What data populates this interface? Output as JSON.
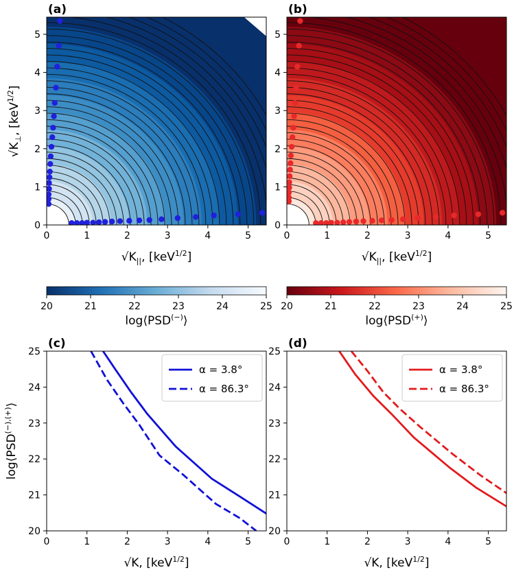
{
  "panels": {
    "a": {
      "label": "(a)",
      "xlabel_pre": "√K",
      "xlabel_sub": "||",
      "xlabel_post": ", [keV",
      "xlabel_sup": "1/2",
      "ylabel_pre": "√K",
      "ylabel_sub": "⊥",
      "ylabel_post": ", [keV",
      "ylabel_sup": "1/2"
    },
    "b": {
      "label": "(b)",
      "xlabel_pre": "√K",
      "xlabel_sub": "||",
      "xlabel_post": ", [keV",
      "xlabel_sup": "1/2"
    },
    "c": {
      "label": "(c)",
      "xlabel": "√K, [keV",
      "xlabel_sup": "1/2",
      "ylabel": "log⟨PSD",
      "ylabel_sup": "(−),(+)"
    },
    "d": {
      "label": "(d)",
      "xlabel": "√K, [keV",
      "xlabel_sup": "1/2"
    }
  },
  "colorbars": {
    "minus": {
      "label": "log⟨PSD",
      "sup": "(−)",
      "ticks": [
        "20",
        "21",
        "22",
        "23",
        "24",
        "25"
      ],
      "color_low": "#08306b",
      "color_high": "#f7fbff"
    },
    "plus": {
      "label": "log⟨PSD",
      "sup": "(+)",
      "ticks": [
        "20",
        "21",
        "22",
        "23",
        "24",
        "25"
      ],
      "color_low": "#67000d",
      "color_high": "#fff5f0"
    }
  },
  "colors": {
    "blue_line": "#1010d8",
    "red_line": "#e31a1c",
    "blue_dot": "#2020dd",
    "red_dot": "#e8282a"
  },
  "chart_data": [
    {
      "type": "heatmap",
      "panel": "a",
      "title": "(a)",
      "xlabel": "√K||, [keV^1/2]",
      "ylabel": "√K⊥, [keV^1/2]",
      "xlim": [
        0,
        5.45
      ],
      "ylim": [
        0,
        5.45
      ],
      "xticks": [
        "0",
        "1",
        "2",
        "3",
        "4",
        "5"
      ],
      "yticks": [
        "0",
        "1",
        "2",
        "3",
        "4",
        "5"
      ],
      "colormap": "Blues_r",
      "clim": [
        20,
        25
      ],
      "description": "log PSD(-) decreasing with radius sqrt(K)",
      "markers_x_axis": [
        [
          0.62,
          0.05
        ],
        [
          0.75,
          0.05
        ],
        [
          0.88,
          0.05
        ],
        [
          1.0,
          0.06
        ],
        [
          1.15,
          0.06
        ],
        [
          1.3,
          0.07
        ],
        [
          1.45,
          0.08
        ],
        [
          1.62,
          0.09
        ],
        [
          1.82,
          0.1
        ],
        [
          2.05,
          0.11
        ],
        [
          2.3,
          0.12
        ],
        [
          2.55,
          0.13
        ],
        [
          2.85,
          0.15
        ],
        [
          3.25,
          0.18
        ],
        [
          3.7,
          0.21
        ],
        [
          4.15,
          0.25
        ],
        [
          4.75,
          0.28
        ],
        [
          5.35,
          0.32
        ]
      ],
      "markers_y_axis": [
        [
          0.05,
          0.55
        ],
        [
          0.05,
          0.68
        ],
        [
          0.05,
          0.8
        ],
        [
          0.06,
          0.95
        ],
        [
          0.06,
          1.1
        ],
        [
          0.07,
          1.25
        ],
        [
          0.08,
          1.4
        ],
        [
          0.09,
          1.6
        ],
        [
          0.1,
          1.8
        ],
        [
          0.12,
          2.05
        ],
        [
          0.14,
          2.3
        ],
        [
          0.16,
          2.55
        ],
        [
          0.18,
          2.85
        ],
        [
          0.2,
          3.2
        ],
        [
          0.23,
          3.6
        ],
        [
          0.26,
          4.15
        ],
        [
          0.3,
          4.7
        ],
        [
          0.33,
          5.35
        ]
      ]
    },
    {
      "type": "heatmap",
      "panel": "b",
      "title": "(b)",
      "xlabel": "√K||, [keV^1/2]",
      "ylabel": "",
      "xlim": [
        0,
        5.45
      ],
      "ylim": [
        0,
        5.45
      ],
      "xticks": [
        "0",
        "1",
        "2",
        "3",
        "4",
        "5"
      ],
      "yticks": [
        "0",
        "1",
        "2",
        "3",
        "4",
        "5"
      ],
      "colormap": "Reds_r",
      "clim": [
        20,
        25
      ],
      "description": "log PSD(+) decreasing with radius sqrt(K)",
      "markers_x_axis": [
        [
          0.72,
          0.05
        ],
        [
          0.85,
          0.05
        ],
        [
          0.98,
          0.05
        ],
        [
          1.1,
          0.06
        ],
        [
          1.25,
          0.06
        ],
        [
          1.4,
          0.07
        ],
        [
          1.55,
          0.08
        ],
        [
          1.72,
          0.09
        ],
        [
          1.9,
          0.1
        ],
        [
          2.12,
          0.11
        ],
        [
          2.35,
          0.12
        ],
        [
          2.6,
          0.13
        ],
        [
          2.88,
          0.15
        ],
        [
          3.25,
          0.18
        ],
        [
          3.7,
          0.21
        ],
        [
          4.15,
          0.25
        ],
        [
          4.75,
          0.28
        ],
        [
          5.35,
          0.32
        ]
      ],
      "markers_y_axis": [
        [
          0.05,
          0.62
        ],
        [
          0.05,
          0.72
        ],
        [
          0.05,
          0.85
        ],
        [
          0.06,
          0.98
        ],
        [
          0.06,
          1.12
        ],
        [
          0.07,
          1.28
        ],
        [
          0.08,
          1.45
        ],
        [
          0.09,
          1.62
        ],
        [
          0.1,
          1.82
        ],
        [
          0.12,
          2.05
        ],
        [
          0.14,
          2.3
        ],
        [
          0.16,
          2.55
        ],
        [
          0.18,
          2.85
        ],
        [
          0.2,
          3.2
        ],
        [
          0.23,
          3.6
        ],
        [
          0.26,
          4.15
        ],
        [
          0.3,
          4.7
        ],
        [
          0.33,
          5.35
        ]
      ]
    },
    {
      "type": "line",
      "panel": "c",
      "title": "(c)",
      "xlabel": "√K, [keV^1/2]",
      "ylabel": "log⟨PSD^(−),(+)⟩",
      "xlim": [
        0,
        5.45
      ],
      "ylim": [
        20,
        25
      ],
      "xticks": [
        "0",
        "1",
        "2",
        "3",
        "4",
        "5"
      ],
      "yticks": [
        "20",
        "21",
        "22",
        "23",
        "24",
        "25"
      ],
      "legend": "top-right",
      "series": [
        {
          "name": "α = 3.8°",
          "dash": "solid",
          "x": [
            1.4,
            1.7,
            2.1,
            2.5,
            3.2,
            4.1,
            4.8,
            5.45
          ],
          "y": [
            25.0,
            24.5,
            23.85,
            23.25,
            22.35,
            21.45,
            20.95,
            20.48
          ]
        },
        {
          "name": "α = 86.3°",
          "dash": "dashed",
          "x": [
            1.1,
            1.5,
            1.9,
            2.3,
            2.8,
            3.4,
            4.2,
            4.8,
            5.2
          ],
          "y": [
            25.0,
            24.2,
            23.55,
            22.95,
            22.1,
            21.55,
            20.75,
            20.35,
            20.0
          ]
        }
      ]
    },
    {
      "type": "line",
      "panel": "d",
      "title": "(d)",
      "xlabel": "√K, [keV^1/2]",
      "ylabel": "",
      "xlim": [
        0,
        5.45
      ],
      "ylim": [
        20,
        25
      ],
      "xticks": [
        "0",
        "1",
        "2",
        "3",
        "4",
        "5"
      ],
      "yticks": [
        "20",
        "21",
        "22",
        "23",
        "24",
        "25"
      ],
      "legend": "top-right",
      "series": [
        {
          "name": "α = 3.8°",
          "dash": "solid",
          "x": [
            1.3,
            1.7,
            2.15,
            2.6,
            3.15,
            4.05,
            4.7,
            5.45
          ],
          "y": [
            25.0,
            24.35,
            23.75,
            23.25,
            22.6,
            21.75,
            21.2,
            20.68
          ]
        },
        {
          "name": "α = 86.3°",
          "dash": "dashed",
          "x": [
            1.6,
            2.0,
            2.4,
            2.8,
            3.3,
            4.1,
            4.8,
            5.45
          ],
          "y": [
            25.0,
            24.45,
            23.85,
            23.4,
            22.9,
            22.15,
            21.55,
            21.05
          ]
        }
      ]
    }
  ]
}
